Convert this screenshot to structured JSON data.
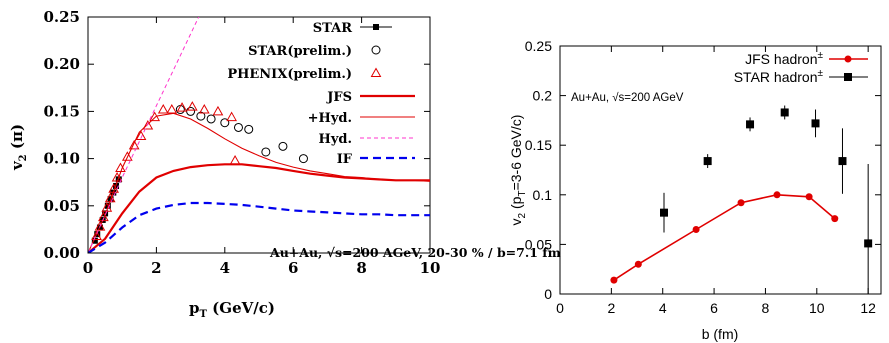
{
  "chart_data": [
    {
      "type": "scatter",
      "xlabel_main": "p",
      "xlabel_sub": "T",
      "xlabel_rest": " (GeV/c)",
      "ylabel_main": "v",
      "ylabel_sub": "2",
      "ylabel_rest": " (π)",
      "xlim": [
        0,
        10
      ],
      "ylim": [
        0,
        0.25
      ],
      "xticks": [
        0,
        2,
        4,
        6,
        8,
        10
      ],
      "yticks": [
        "0.00",
        "0.05",
        "0.10",
        "0.15",
        "0.20",
        "0.25"
      ],
      "annotation": "Au+Au, √s=200 AGeV, 20-30 % / b=7.1 fm",
      "legend_position": "top-right",
      "legend": [
        "STAR",
        "STAR(prelim.)",
        "PHENIX(prelim.)",
        "JFS",
        "+Hyd.",
        "Hyd.",
        "IF"
      ],
      "series": [
        {
          "name": "STAR",
          "marker": "filled-square",
          "color": "#000000",
          "x": [
            0.2,
            0.27,
            0.35,
            0.43,
            0.5,
            0.58,
            0.66,
            0.74,
            0.82,
            0.9
          ],
          "y": [
            0.013,
            0.02,
            0.027,
            0.035,
            0.042,
            0.05,
            0.057,
            0.064,
            0.071,
            0.078
          ]
        },
        {
          "name": "STAR(prelim.)",
          "marker": "open-circle",
          "color": "#000000",
          "x": [
            2.7,
            3.0,
            3.3,
            3.6,
            4.0,
            4.4,
            4.7,
            5.2,
            5.7,
            6.3
          ],
          "y": [
            0.152,
            0.15,
            0.145,
            0.142,
            0.138,
            0.133,
            0.131,
            0.107,
            0.113,
            0.1
          ]
        },
        {
          "name": "PHENIX(prelim.)",
          "marker": "open-triangle",
          "color": "#e00000",
          "x": [
            0.25,
            0.35,
            0.45,
            0.55,
            0.65,
            0.75,
            0.85,
            0.95,
            1.15,
            1.35,
            1.55,
            1.75,
            1.95,
            2.2,
            2.45,
            2.75,
            3.05,
            3.4,
            3.8,
            4.2,
            4.3
          ],
          "y": [
            0.018,
            0.028,
            0.038,
            0.048,
            0.058,
            0.068,
            0.08,
            0.09,
            0.102,
            0.114,
            0.124,
            0.135,
            0.144,
            0.152,
            0.152,
            0.154,
            0.155,
            0.152,
            0.15,
            0.144,
            0.098
          ]
        },
        {
          "name": "JFS",
          "line": "solid-thick",
          "color": "#e00000",
          "x": [
            0,
            0.5,
            1,
            1.5,
            2,
            2.5,
            3,
            3.5,
            4,
            4.5,
            5,
            5.5,
            6,
            6.5,
            7,
            7.5,
            8,
            8.5,
            9,
            9.5,
            10
          ],
          "y": [
            0,
            0.015,
            0.042,
            0.065,
            0.08,
            0.087,
            0.091,
            0.093,
            0.094,
            0.094,
            0.092,
            0.09,
            0.087,
            0.084,
            0.082,
            0.08,
            0.079,
            0.078,
            0.077,
            0.077,
            0.077
          ]
        },
        {
          "name": "+Hyd.",
          "line": "solid-thin",
          "color": "#e00000",
          "x": [
            0,
            0.5,
            1,
            1.5,
            2,
            2.5,
            3,
            3.5,
            4,
            4.5,
            5,
            5.5,
            6,
            6.5,
            7,
            7.5,
            8,
            8.5,
            9,
            9.5,
            10
          ],
          "y": [
            0,
            0.04,
            0.09,
            0.128,
            0.145,
            0.148,
            0.142,
            0.132,
            0.121,
            0.111,
            0.103,
            0.096,
            0.091,
            0.087,
            0.084,
            0.081,
            0.08,
            0.078,
            0.077,
            0.077,
            0.076
          ]
        },
        {
          "name": "Hyd.",
          "line": "dashed-thin",
          "color": "#ff33cc",
          "x": [
            0,
            0.5,
            1,
            1.5,
            2,
            2.5,
            3,
            3.5
          ],
          "y": [
            0,
            0.04,
            0.08,
            0.118,
            0.156,
            0.194,
            0.232,
            0.27
          ]
        },
        {
          "name": "IF",
          "line": "dashed-thick",
          "color": "#0000ee",
          "x": [
            0,
            0.5,
            1,
            1.5,
            2,
            2.5,
            3,
            3.5,
            4,
            4.5,
            5,
            5.5,
            6,
            6.5,
            7,
            7.5,
            8,
            8.5,
            9,
            9.5,
            10
          ],
          "y": [
            0,
            0.011,
            0.027,
            0.04,
            0.047,
            0.051,
            0.053,
            0.053,
            0.052,
            0.051,
            0.049,
            0.047,
            0.045,
            0.044,
            0.043,
            0.042,
            0.041,
            0.041,
            0.04,
            0.04,
            0.04
          ]
        }
      ]
    },
    {
      "type": "line",
      "xlabel": "b (fm)",
      "ylabel_main": "v",
      "ylabel_sub1": "2",
      "ylabel_mid": " (p",
      "ylabel_sub2": "T",
      "ylabel_rest": "=3-6 GeV/c)",
      "xlim": [
        0,
        12.5
      ],
      "ylim": [
        0,
        0.25
      ],
      "xticks": [
        "0",
        "2",
        "4",
        "6",
        "8",
        "10",
        "12"
      ],
      "yticks": [
        "0",
        "0.05",
        "0.1",
        "0.15",
        "0.2",
        "0.25"
      ],
      "annotation": "Au+Au, √s=200 AGeV",
      "legend_position": "top-right",
      "series": [
        {
          "name": "JFS hadron",
          "superscript": "±",
          "marker": "filled-circle",
          "color": "#e00000",
          "x": [
            2.1,
            3.05,
            5.3,
            7.05,
            8.45,
            9.7,
            10.7
          ],
          "y": [
            0.014,
            0.03,
            0.065,
            0.092,
            0.1,
            0.098,
            0.076
          ]
        },
        {
          "name": "STAR hadron",
          "superscript": "±",
          "marker": "filled-square",
          "color": "#000000",
          "x": [
            4.05,
            5.75,
            7.4,
            8.75,
            9.95,
            11.0,
            12.0
          ],
          "y": [
            0.082,
            0.134,
            0.171,
            0.183,
            0.172,
            0.134,
            0.051
          ],
          "yerr": [
            0.02,
            0.007,
            0.007,
            0.007,
            0.014,
            0.033,
            0.08
          ]
        }
      ]
    }
  ]
}
